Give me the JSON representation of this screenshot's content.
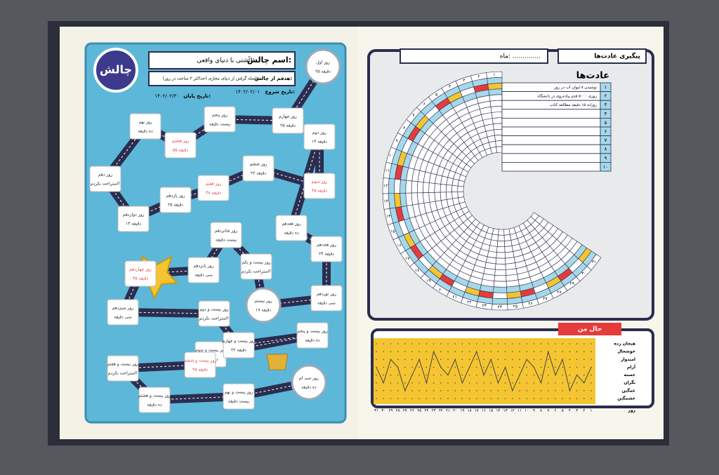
{
  "challenge_page": {
    "badge": "چالش",
    "name_label": "اسم چالش:",
    "name": "آشتی با دنیای واقعی!",
    "goal_label": "هدفم از چالش:",
    "goal": "فاصله گرفتن از دنیای مجازی (حداکثر ۲ ساعت در روز)",
    "start_label": "تاریخ شروع:",
    "start_date": "۱۴۰۲/۰۲/۰۱",
    "end_label": "تاریخ پایان:",
    "end_date": "۱۴۰۲/۰۲/۳۰",
    "days": [
      {
        "day": "روز اول",
        "note": "۲۵ دقیقه"
      },
      {
        "day": "روز دوم",
        "note": "۱۴ دقیقه"
      },
      {
        "day": "روز سوم",
        "note": "۴۵ دقیقه"
      },
      {
        "day": "روز چهارم",
        "note": "۲۵ دقیقه"
      },
      {
        "day": "روز پنجم",
        "note": "بیست دقیقه"
      },
      {
        "day": "روز ششم",
        "note": "۲۲ دقیقه"
      },
      {
        "day": "روز هفتم",
        "note": "۳۸ دقیقه"
      },
      {
        "day": "روز هشتم",
        "note": "۵۵ دقیقه"
      },
      {
        "day": "روز نهم",
        "note": "ده دقیقه"
      },
      {
        "day": "روز دهم",
        "note": "استراحت نکردم!"
      },
      {
        "day": "روز یازدهم",
        "note": "۲۵ دقیقه"
      },
      {
        "day": "روز دوازدهم",
        "note": "۱۴ دقیقه"
      },
      {
        "day": "روز سیزدهم",
        "note": "سی دقیقه"
      },
      {
        "day": "روز چهاردهم",
        "note": "۴۵ دقیقه"
      },
      {
        "day": "روز پانزدهم",
        "note": "سی دقیقه"
      },
      {
        "day": "روز شانزدهم",
        "note": "بیست دقیقه"
      },
      {
        "day": "روز هفدهم",
        "note": "ده دقیقه"
      },
      {
        "day": "روز هجدهم",
        "note": "۲۴ دقیقه"
      },
      {
        "day": "روز نوزدهم",
        "note": "سی دقیقه"
      },
      {
        "day": "روز بیستم",
        "note": "۱۷ دقیقه"
      },
      {
        "day": "روز بیست و یکم",
        "note": "استراحت نکردم!"
      },
      {
        "day": "روز بیست و دوم",
        "note": "استراحت نکردم!"
      },
      {
        "day": "روز بیست و سوم",
        "note": "ده دقیقه"
      },
      {
        "day": "روز بیست و چهارم",
        "note": "۲۲ دقیقه"
      },
      {
        "day": "روز بیست و پنجم",
        "note": "ده دقیقه"
      },
      {
        "day": "روز بیست و ششم",
        "note": "۲۵ دقیقه"
      },
      {
        "day": "روز بیست و هفتم",
        "note": "استراحت نکردم!"
      },
      {
        "day": "روز بیست و هشتم",
        "note": "ده دقیقه"
      },
      {
        "day": "روز بیست و نهم",
        "note": "بیست دقیقه"
      },
      {
        "day": "روز سی ام",
        "note": "ده دقیقه"
      }
    ]
  },
  "habit_page": {
    "title": "پیگیری عادت‌ها",
    "month_label": "ماه: ..............",
    "habits_title": "عادت‌ها",
    "habits": [
      {
        "num": "۱",
        "text": "نوشیدن ۸ لیوان آب در روز"
      },
      {
        "num": "۲",
        "text": "روزی ۵۰۰۰ قدم پیاده‌روی در دانشگاه"
      },
      {
        "num": "۳",
        "text": "روزانه ۱۵ دقیقه مطالعه کتاب"
      },
      {
        "num": "۴",
        "text": ""
      },
      {
        "num": "۵",
        "text": ""
      },
      {
        "num": "۶",
        "text": ""
      },
      {
        "num": "۷",
        "text": ""
      },
      {
        "num": "۸",
        "text": ""
      },
      {
        "num": "۹",
        "text": ""
      },
      {
        "num": "۱۰",
        "text": ""
      }
    ],
    "days": [
      "۱",
      "۲",
      "۳",
      "۴",
      "۵",
      "۶",
      "۷",
      "۸",
      "۹",
      "۱۰",
      "۱۱",
      "۱۲",
      "۱۳",
      "۱۴",
      "۱۵",
      "۱۶",
      "۱۷",
      "۱۸",
      "۱۹",
      "۲۰",
      "۲۱",
      "۲۲",
      "۲۳",
      "۲۴",
      "۲۵",
      "۲۶",
      "۲۷",
      "۲۸",
      "۲۹",
      "۳۰",
      "۳۱"
    ],
    "mood_title": "حال من",
    "moods": [
      "هیجان زده",
      "خوشحال",
      "امیدوار",
      "آرام",
      "خسته",
      "نگران",
      "غمگین",
      "خشمگین"
    ],
    "day_label": "روز",
    "mood_values": [
      3,
      5,
      4,
      6,
      2,
      4,
      1,
      5,
      3,
      2,
      4,
      6,
      3,
      5,
      2,
      4,
      1,
      3,
      5,
      2,
      4,
      3,
      1,
      5,
      2,
      4,
      6,
      3,
      2,
      5,
      3
    ]
  }
}
